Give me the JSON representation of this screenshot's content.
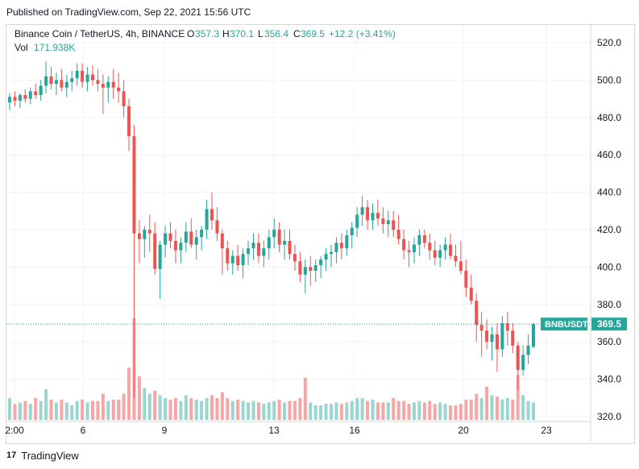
{
  "published": "Published on TradingView.com, Sep 22, 2021 15:56 UTC",
  "legend": {
    "symbol": "Binance Coin / TetherUS, 4h, BINANCE",
    "o_label": "O",
    "o": "357.3",
    "h_label": "H",
    "h": "370.1",
    "l_label": "L",
    "l": "356.4",
    "c_label": "C",
    "c": "369.5",
    "change": "+12.2 (+3.41%)",
    "vol_label": "Vol",
    "vol": "171.938K"
  },
  "price_tag": {
    "ticker": "BNBUSDT",
    "value": "369.5"
  },
  "footer": {
    "logo": "17",
    "brand": "TradingView"
  },
  "colors": {
    "up": "#26a69a",
    "down": "#ef5350",
    "up_vol": "#9ad5cf",
    "down_vol": "#f5a6a5",
    "grid": "#f0f3fa",
    "text": "#131722"
  },
  "chart_data": {
    "type": "candlestick",
    "title": "Binance Coin / TetherUS, 4h, BINANCE",
    "ylim": [
      320,
      528
    ],
    "y_ticks": [
      "520.0",
      "500.0",
      "480.0",
      "460.0",
      "440.0",
      "420.0",
      "400.0",
      "380.0",
      "360.0",
      "340.0",
      "320.0"
    ],
    "x_ticks": [
      "2:00",
      "6",
      "9",
      "13",
      "16",
      "20",
      "23"
    ],
    "last_price": 369.5,
    "grid": true,
    "candles": [
      [
        488,
        493,
        484,
        491
      ],
      [
        491,
        494,
        486,
        489
      ],
      [
        489,
        493,
        485,
        492
      ],
      [
        492,
        495,
        488,
        490
      ],
      [
        490,
        496,
        487,
        494
      ],
      [
        494,
        498,
        490,
        492
      ],
      [
        492,
        500,
        489,
        497
      ],
      [
        497,
        510,
        493,
        502
      ],
      [
        502,
        507,
        495,
        498
      ],
      [
        498,
        504,
        492,
        500
      ],
      [
        500,
        506,
        494,
        496
      ],
      [
        496,
        503,
        491,
        499
      ],
      [
        499,
        505,
        494,
        501
      ],
      [
        501,
        509,
        497,
        505
      ],
      [
        505,
        509,
        496,
        499
      ],
      [
        499,
        507,
        494,
        503
      ],
      [
        503,
        508,
        497,
        500
      ],
      [
        500,
        506,
        494,
        498
      ],
      [
        498,
        503,
        482,
        496
      ],
      [
        496,
        502,
        488,
        499
      ],
      [
        499,
        506,
        490,
        496
      ],
      [
        496,
        504,
        488,
        494
      ],
      [
        494,
        500,
        480,
        486
      ],
      [
        486,
        490,
        462,
        470
      ],
      [
        470,
        476,
        330,
        418
      ],
      [
        418,
        425,
        402,
        415
      ],
      [
        415,
        422,
        405,
        420
      ],
      [
        420,
        428,
        408,
        418
      ],
      [
        418,
        424,
        396,
        399
      ],
      [
        399,
        414,
        383,
        412
      ],
      [
        412,
        422,
        405,
        418
      ],
      [
        418,
        424,
        410,
        414
      ],
      [
        414,
        420,
        402,
        409
      ],
      [
        409,
        416,
        402,
        413
      ],
      [
        413,
        424,
        408,
        419
      ],
      [
        419,
        426,
        410,
        412
      ],
      [
        412,
        420,
        404,
        416
      ],
      [
        416,
        422,
        409,
        420
      ],
      [
        420,
        436,
        415,
        431
      ],
      [
        431,
        440,
        420,
        425
      ],
      [
        425,
        432,
        414,
        418
      ],
      [
        418,
        420,
        396,
        410
      ],
      [
        410,
        414,
        398,
        402
      ],
      [
        402,
        409,
        396,
        406
      ],
      [
        406,
        412,
        398,
        401
      ],
      [
        401,
        410,
        394,
        407
      ],
      [
        407,
        414,
        401,
        410
      ],
      [
        410,
        418,
        404,
        413
      ],
      [
        413,
        418,
        402,
        406
      ],
      [
        406,
        414,
        400,
        410
      ],
      [
        410,
        420,
        404,
        416
      ],
      [
        416,
        426,
        410,
        420
      ],
      [
        420,
        424,
        408,
        412
      ],
      [
        412,
        420,
        404,
        414
      ],
      [
        414,
        420,
        404,
        407
      ],
      [
        407,
        412,
        398,
        403
      ],
      [
        403,
        408,
        392,
        396
      ],
      [
        396,
        404,
        386,
        400
      ],
      [
        400,
        406,
        390,
        398
      ],
      [
        398,
        404,
        392,
        401
      ],
      [
        401,
        406,
        394,
        404
      ],
      [
        404,
        410,
        398,
        407
      ],
      [
        407,
        412,
        400,
        408
      ],
      [
        408,
        416,
        402,
        413
      ],
      [
        413,
        418,
        404,
        410
      ],
      [
        410,
        420,
        406,
        417
      ],
      [
        417,
        424,
        410,
        421
      ],
      [
        421,
        432,
        416,
        428
      ],
      [
        428,
        438,
        422,
        432
      ],
      [
        432,
        436,
        420,
        425
      ],
      [
        425,
        434,
        420,
        429
      ],
      [
        429,
        436,
        422,
        426
      ],
      [
        426,
        432,
        418,
        423
      ],
      [
        423,
        430,
        416,
        425
      ],
      [
        425,
        430,
        416,
        420
      ],
      [
        420,
        428,
        412,
        415
      ],
      [
        415,
        420,
        404,
        409
      ],
      [
        409,
        414,
        400,
        408
      ],
      [
        408,
        416,
        402,
        412
      ],
      [
        412,
        420,
        406,
        417
      ],
      [
        417,
        420,
        410,
        413
      ],
      [
        413,
        418,
        404,
        409
      ],
      [
        409,
        414,
        401,
        405
      ],
      [
        405,
        412,
        400,
        409
      ],
      [
        409,
        416,
        404,
        412
      ],
      [
        412,
        418,
        404,
        406
      ],
      [
        406,
        412,
        400,
        403
      ],
      [
        403,
        414,
        396,
        398
      ],
      [
        398,
        404,
        384,
        389
      ],
      [
        389,
        396,
        380,
        382
      ],
      [
        382,
        386,
        360,
        369
      ],
      [
        369,
        376,
        352,
        366
      ],
      [
        366,
        372,
        356,
        360
      ],
      [
        360,
        368,
        350,
        364
      ],
      [
        364,
        370,
        344,
        356
      ],
      [
        356,
        374,
        352,
        370
      ],
      [
        370,
        376,
        358,
        366
      ],
      [
        366,
        370,
        354,
        358
      ],
      [
        358,
        360,
        334,
        345
      ],
      [
        345,
        358,
        342,
        353
      ],
      [
        353,
        364,
        348,
        358
      ],
      [
        357.3,
        370.1,
        356.4,
        369.5
      ]
    ],
    "volumes": [
      {
        "v": 30,
        "up": true
      },
      {
        "v": 22,
        "up": false
      },
      {
        "v": 24,
        "up": true
      },
      {
        "v": 26,
        "up": false
      },
      {
        "v": 22,
        "up": true
      },
      {
        "v": 30,
        "up": false
      },
      {
        "v": 26,
        "up": true
      },
      {
        "v": 42,
        "up": true
      },
      {
        "v": 28,
        "up": false
      },
      {
        "v": 24,
        "up": true
      },
      {
        "v": 28,
        "up": false
      },
      {
        "v": 24,
        "up": true
      },
      {
        "v": 20,
        "up": true
      },
      {
        "v": 26,
        "up": true
      },
      {
        "v": 28,
        "up": false
      },
      {
        "v": 24,
        "up": true
      },
      {
        "v": 26,
        "up": false
      },
      {
        "v": 26,
        "up": false
      },
      {
        "v": 36,
        "up": false
      },
      {
        "v": 26,
        "up": true
      },
      {
        "v": 28,
        "up": false
      },
      {
        "v": 28,
        "up": false
      },
      {
        "v": 36,
        "up": false
      },
      {
        "v": 72,
        "up": false
      },
      {
        "v": 140,
        "up": false
      },
      {
        "v": 60,
        "up": false
      },
      {
        "v": 44,
        "up": true
      },
      {
        "v": 36,
        "up": true
      },
      {
        "v": 40,
        "up": false
      },
      {
        "v": 34,
        "up": true
      },
      {
        "v": 30,
        "up": true
      },
      {
        "v": 28,
        "up": false
      },
      {
        "v": 30,
        "up": false
      },
      {
        "v": 26,
        "up": true
      },
      {
        "v": 34,
        "up": true
      },
      {
        "v": 30,
        "up": false
      },
      {
        "v": 28,
        "up": true
      },
      {
        "v": 26,
        "up": true
      },
      {
        "v": 30,
        "up": true
      },
      {
        "v": 34,
        "up": false
      },
      {
        "v": 30,
        "up": false
      },
      {
        "v": 38,
        "up": false
      },
      {
        "v": 30,
        "up": false
      },
      {
        "v": 26,
        "up": true
      },
      {
        "v": 28,
        "up": false
      },
      {
        "v": 26,
        "up": true
      },
      {
        "v": 24,
        "up": true
      },
      {
        "v": 26,
        "up": true
      },
      {
        "v": 24,
        "up": false
      },
      {
        "v": 22,
        "up": true
      },
      {
        "v": 24,
        "up": true
      },
      {
        "v": 26,
        "up": true
      },
      {
        "v": 28,
        "up": false
      },
      {
        "v": 24,
        "up": true
      },
      {
        "v": 26,
        "up": false
      },
      {
        "v": 26,
        "up": false
      },
      {
        "v": 30,
        "up": false
      },
      {
        "v": 58,
        "up": false
      },
      {
        "v": 24,
        "up": true
      },
      {
        "v": 20,
        "up": true
      },
      {
        "v": 20,
        "up": true
      },
      {
        "v": 22,
        "up": true
      },
      {
        "v": 22,
        "up": true
      },
      {
        "v": 24,
        "up": true
      },
      {
        "v": 22,
        "up": false
      },
      {
        "v": 24,
        "up": true
      },
      {
        "v": 26,
        "up": true
      },
      {
        "v": 30,
        "up": true
      },
      {
        "v": 30,
        "up": true
      },
      {
        "v": 26,
        "up": false
      },
      {
        "v": 28,
        "up": true
      },
      {
        "v": 24,
        "up": false
      },
      {
        "v": 24,
        "up": false
      },
      {
        "v": 24,
        "up": true
      },
      {
        "v": 30,
        "up": false
      },
      {
        "v": 26,
        "up": false
      },
      {
        "v": 26,
        "up": false
      },
      {
        "v": 22,
        "up": false
      },
      {
        "v": 24,
        "up": true
      },
      {
        "v": 26,
        "up": true
      },
      {
        "v": 24,
        "up": false
      },
      {
        "v": 26,
        "up": false
      },
      {
        "v": 22,
        "up": false
      },
      {
        "v": 24,
        "up": true
      },
      {
        "v": 22,
        "up": true
      },
      {
        "v": 20,
        "up": false
      },
      {
        "v": 20,
        "up": false
      },
      {
        "v": 22,
        "up": false
      },
      {
        "v": 28,
        "up": false
      },
      {
        "v": 28,
        "up": false
      },
      {
        "v": 36,
        "up": false
      },
      {
        "v": 30,
        "up": true
      },
      {
        "v": 46,
        "up": false
      },
      {
        "v": 34,
        "up": true
      },
      {
        "v": 32,
        "up": false
      },
      {
        "v": 28,
        "up": true
      },
      {
        "v": 30,
        "up": true
      },
      {
        "v": 28,
        "up": false
      },
      {
        "v": 62,
        "up": false
      },
      {
        "v": 34,
        "up": true
      },
      {
        "v": 26,
        "up": true
      },
      {
        "v": 24,
        "up": true
      }
    ]
  }
}
